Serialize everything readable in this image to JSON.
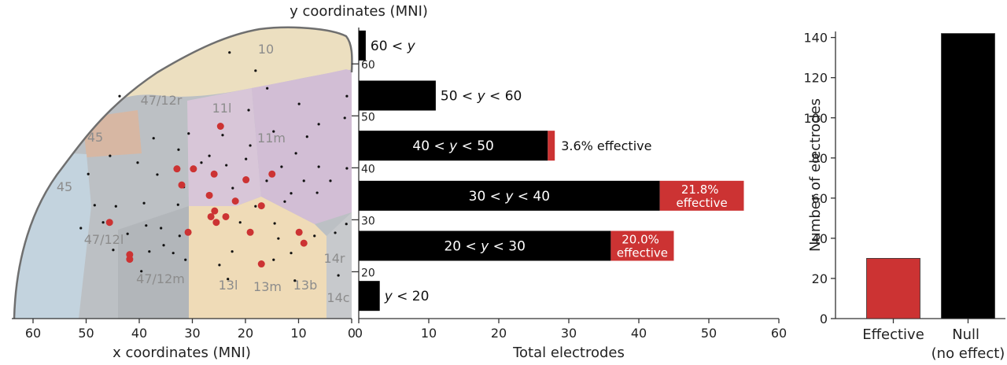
{
  "chart_data": [
    {
      "type": "scatter",
      "xlabel": "x coordinates (MNI)",
      "xlim": [
        64,
        0
      ],
      "xticks": [
        60,
        50,
        40,
        30,
        20,
        10,
        0
      ],
      "ylim": [
        12.5,
        67
      ],
      "region_labels": [
        "10",
        "47/12r",
        "11l",
        "45",
        "11m",
        "45",
        "47/12l",
        "47/12m",
        "13l",
        "13m",
        "13b",
        "14r",
        "14c"
      ],
      "series": [
        {
          "color": "#111111",
          "x": [
            23.0,
            18.1,
            0.9,
            43.7,
            15.9,
            9.9,
            19.4,
            1.3,
            6.2,
            30.7,
            24.3,
            14.7,
            8.4,
            37.3,
            19.1,
            10.5,
            32.6,
            26.8,
            19.9,
            45.5,
            40.3,
            28.3,
            23.6,
            13.2,
            6.2,
            0.9,
            49.6,
            36.6,
            16.0,
            9.0,
            4.0,
            31.6,
            22.4,
            11.4,
            6.5,
            48.4,
            44.4,
            39.1,
            32.7,
            18.1,
            12.6,
            46.8,
            38.7,
            35.9,
            21.0,
            14.5,
            1.0,
            51.0,
            42.2,
            32.4,
            13.8,
            7.0,
            3.1,
            35.4,
            44.9,
            38.1,
            33.6,
            31.3,
            22.5,
            14.7,
            11.4,
            39.6,
            23.3,
            10.7,
            24.9,
            2.5
          ],
          "y": [
            62.2,
            58.7,
            53.8,
            53.8,
            55.3,
            52.3,
            51.1,
            49.6,
            48.4,
            46.6,
            46.3,
            47.0,
            46.0,
            45.7,
            44.3,
            42.8,
            43.5,
            42.3,
            41.7,
            42.3,
            41.0,
            41.0,
            40.5,
            40.2,
            40.2,
            39.9,
            38.8,
            38.7,
            37.5,
            37.5,
            37.5,
            36.3,
            36.1,
            35.1,
            35.2,
            32.8,
            32.6,
            33.2,
            32.9,
            32.6,
            33.5,
            29.5,
            28.9,
            28.4,
            29.5,
            29.3,
            29.2,
            28.4,
            27.3,
            26.9,
            26.4,
            26.9,
            27.5,
            25.1,
            24.2,
            23.9,
            23.6,
            22.3,
            23.9,
            22.3,
            23.6,
            20.1,
            18.6,
            18.3,
            21.3,
            19.3
          ]
        },
        {
          "color": "#cc3333",
          "x": [
            24.7,
            32.9,
            29.8,
            32.0,
            25.9,
            19.9,
            15.0,
            26.8,
            21.9,
            17.0,
            25.8,
            23.7,
            26.5,
            25.5,
            30.8,
            19.1,
            9.9,
            9.0,
            45.6,
            41.8,
            41.8,
            17.0
          ],
          "y": [
            48.0,
            39.8,
            39.8,
            36.7,
            38.8,
            37.7,
            38.8,
            34.7,
            33.6,
            32.7,
            31.7,
            30.6,
            30.6,
            29.5,
            27.6,
            27.6,
            27.6,
            25.5,
            29.5,
            23.3,
            22.4,
            21.5
          ]
        }
      ]
    },
    {
      "type": "bar",
      "orientation": "horizontal",
      "stacked": true,
      "title": "y coordinates (MNI)",
      "xlabel": "Total electrodes",
      "categories": [
        "60 < y",
        "50 < y < 60",
        "40 < y < 50",
        "30 < y < 40",
        "20 < y < 30",
        "y < 20"
      ],
      "series": [
        {
          "color": "#000000",
          "values": [
            1,
            11,
            27,
            43,
            36,
            3
          ]
        },
        {
          "color": "#cc3333",
          "values": [
            0,
            0,
            1,
            12,
            9,
            0
          ]
        }
      ],
      "annotations": [
        {
          "category": "40 < y < 50",
          "text": "3.6% effective"
        },
        {
          "category": "30 < y < 40",
          "text": "21.8% effective"
        },
        {
          "category": "20 < y < 30",
          "text": "20.0% effective"
        }
      ],
      "xlim": [
        0,
        60
      ],
      "xticks": [
        0,
        10,
        20,
        30,
        40,
        50,
        60
      ],
      "ylim": [
        12.5,
        67
      ],
      "yticks": [
        60,
        50,
        40,
        30,
        20
      ]
    },
    {
      "type": "bar",
      "orientation": "vertical",
      "ylabel": "Number of electrodes",
      "categories": [
        "Effective",
        "Null (no effect)"
      ],
      "values": [
        30,
        142
      ],
      "colors": [
        "#cc3333",
        "#000000"
      ],
      "ylim": [
        0,
        143
      ],
      "yticks": [
        0,
        20,
        40,
        60,
        80,
        100,
        120,
        140
      ]
    }
  ]
}
